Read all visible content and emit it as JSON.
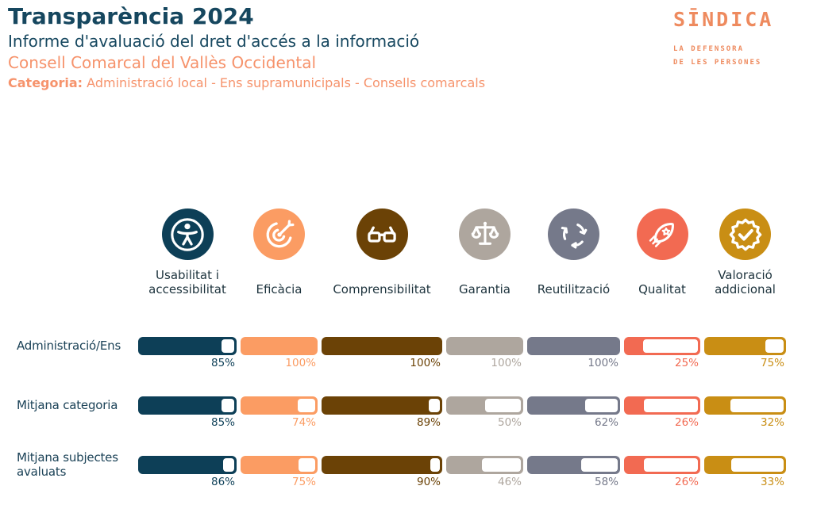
{
  "header": {
    "title": "Transparència 2024",
    "subtitle": "Informe d'avaluació del dret d'accés a la informació",
    "entity": "Consell Comarcal del Vallès Occidental",
    "category_label": "Categoria:",
    "category_value": "Administració local - Ens supramunicipals - Consells comarcals",
    "title_color": "#16475f",
    "accent_color": "#f6936c"
  },
  "logo": {
    "name": "SĪNDICA",
    "tagline_line1": "LA DEFENSORA",
    "tagline_line2": "DE LES PERSONES",
    "color": "#ee8a5e"
  },
  "columns": [
    {
      "label": "Usabilitat i\naccessibilitat",
      "icon": "accessibility-icon",
      "color": "#0d3f57"
    },
    {
      "label": "Eficàcia",
      "icon": "target-dart-icon",
      "color": "#fb9c63"
    },
    {
      "label": "Comprensibilitat",
      "icon": "glasses-icon",
      "color": "#6b4206"
    },
    {
      "label": "Garantia",
      "icon": "scales-icon",
      "color": "#aea69e"
    },
    {
      "label": "Reutilització",
      "icon": "recycle-icon",
      "color": "#75798a"
    },
    {
      "label": "Qualitat",
      "icon": "rocket-icon",
      "color": "#f26a52"
    },
    {
      "label": "Valoració\naddicional",
      "icon": "seal-check-icon",
      "color": "#c98e14"
    }
  ],
  "chart_data": {
    "type": "bar",
    "orientation": "horizontal",
    "unit": "%",
    "ylim": [
      0,
      100
    ],
    "value_label_format": "{value}%",
    "categories": [
      "Usabilitat i accessibilitat",
      "Eficàcia",
      "Comprensibilitat",
      "Garantia",
      "Reutilització",
      "Qualitat",
      "Valoració addicional"
    ],
    "series": [
      {
        "name": "Administració/Ens",
        "values": [
          85,
          100,
          100,
          100,
          100,
          25,
          75
        ]
      },
      {
        "name": "Mitjana categoria",
        "values": [
          85,
          74,
          89,
          50,
          62,
          26,
          32
        ]
      },
      {
        "name": "Mitjana subjectes avaluats",
        "values": [
          86,
          75,
          90,
          46,
          58,
          26,
          33
        ]
      }
    ]
  }
}
